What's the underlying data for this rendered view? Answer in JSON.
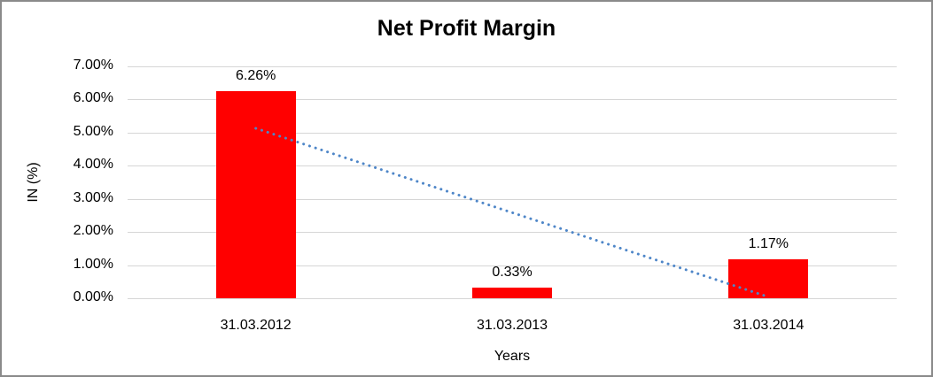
{
  "chart_data": {
    "type": "bar",
    "title": "Net Profit Margin",
    "xlabel": "Years",
    "ylabel": "IN (%)",
    "categories": [
      "31.03.2012",
      "31.03.2013",
      "31.03.2014"
    ],
    "values": [
      6.26,
      0.33,
      1.17
    ],
    "data_labels": [
      "6.26%",
      "0.33%",
      "1.17%"
    ],
    "ylim": [
      0,
      7
    ],
    "ytick_labels": [
      "0.00%",
      "1.00%",
      "2.00%",
      "3.00%",
      "4.00%",
      "5.00%",
      "6.00%",
      "7.00%"
    ],
    "grid": true,
    "legend": "none",
    "bar_color": "#ff0000",
    "gridline_color": "#d6d6d6",
    "frame_border_color": "#8a8a8a",
    "trendline": {
      "style": "dotted",
      "color": "#4e86c8",
      "x1_category_index": 0,
      "y1": 5.13,
      "x2_category_index": 2,
      "y2": 0.04
    }
  }
}
